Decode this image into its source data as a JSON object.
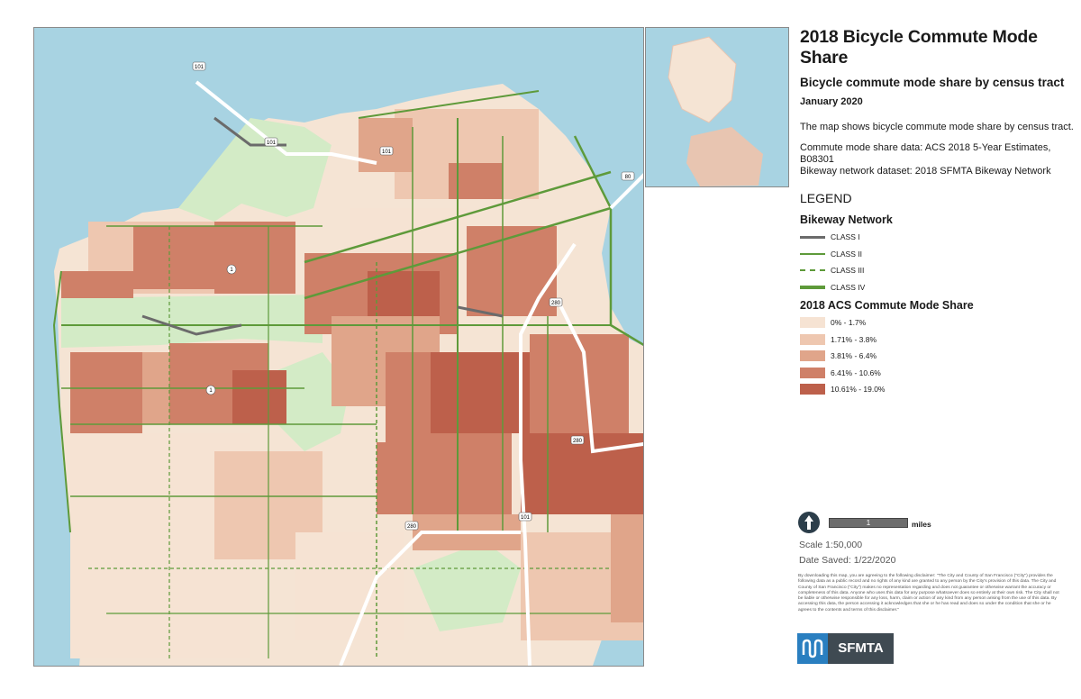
{
  "header": {
    "title": "2018 Bicycle Commute Mode Share",
    "subtitle": "Bicycle commute mode share by census tract",
    "date": "January 2020"
  },
  "description": "The map shows bicycle commute mode share by census tract.",
  "sources": {
    "mode_share": "Commute mode share data: ACS 2018 5-Year Estimates, B08301",
    "bikeway": "Bikeway network dataset: 2018 SFMTA Bikeway Network"
  },
  "legend": {
    "heading": "LEGEND",
    "network_title": "Bikeway Network",
    "network": [
      {
        "label": "CLASS I",
        "color": "#6b6b6b",
        "style": "solid-thick"
      },
      {
        "label": "CLASS II",
        "color": "#5e9a3a",
        "style": "solid"
      },
      {
        "label": "CLASS III",
        "color": "#5e9a3a",
        "style": "dashed"
      },
      {
        "label": "CLASS IV",
        "color": "#5e9a3a",
        "style": "solid-thick"
      }
    ],
    "share_title": "2018 ACS Commute Mode Share",
    "share": [
      {
        "label": "0% - 1.7%",
        "color": "#f6e3d3"
      },
      {
        "label": "1.71% - 3.8%",
        "color": "#eec7b0"
      },
      {
        "label": "3.81% - 6.4%",
        "color": "#e0a58a"
      },
      {
        "label": "6.41% - 10.6%",
        "color": "#cf8068"
      },
      {
        "label": "10.61% - 19.0%",
        "color": "#bd604b"
      }
    ]
  },
  "scalebar": {
    "value": "1",
    "unit": "miles"
  },
  "scale_text": "Scale  1:50,000",
  "date_saved": "Date Saved:  1/22/2020",
  "disclaimer": "By downloading this map, you are agreeing to the following disclaimer: \"The City and County of San Francisco (\"City\") provides the following data as a public record and no rights of any kind are granted to any person by the City's provision of this data. The City and County of San Francisco (\"City\") makes no representation regarding and does not guarantee or otherwise warrant the accuracy or completeness of this data. Anyone who uses this data for any purpose whatsoever does so entirely at their own risk. The City shall not be liable or otherwise responsible for any loss, harm, claim or action of any kind from any person arising from the use of this data. By accessing this data, the person accessing it acknowledges that she or he has read and does so under the condition that she or he agrees to the contents and terms of this disclaimer.\"",
  "logo": {
    "text": "SFMTA",
    "color": "#2a7fc0"
  },
  "map": {
    "water_color": "#a8d3e2",
    "park_color": "#d3ebc6",
    "highway_labels": [
      "101",
      "101",
      "101",
      "80",
      "280",
      "280",
      "280",
      "101",
      "1",
      "1"
    ]
  }
}
